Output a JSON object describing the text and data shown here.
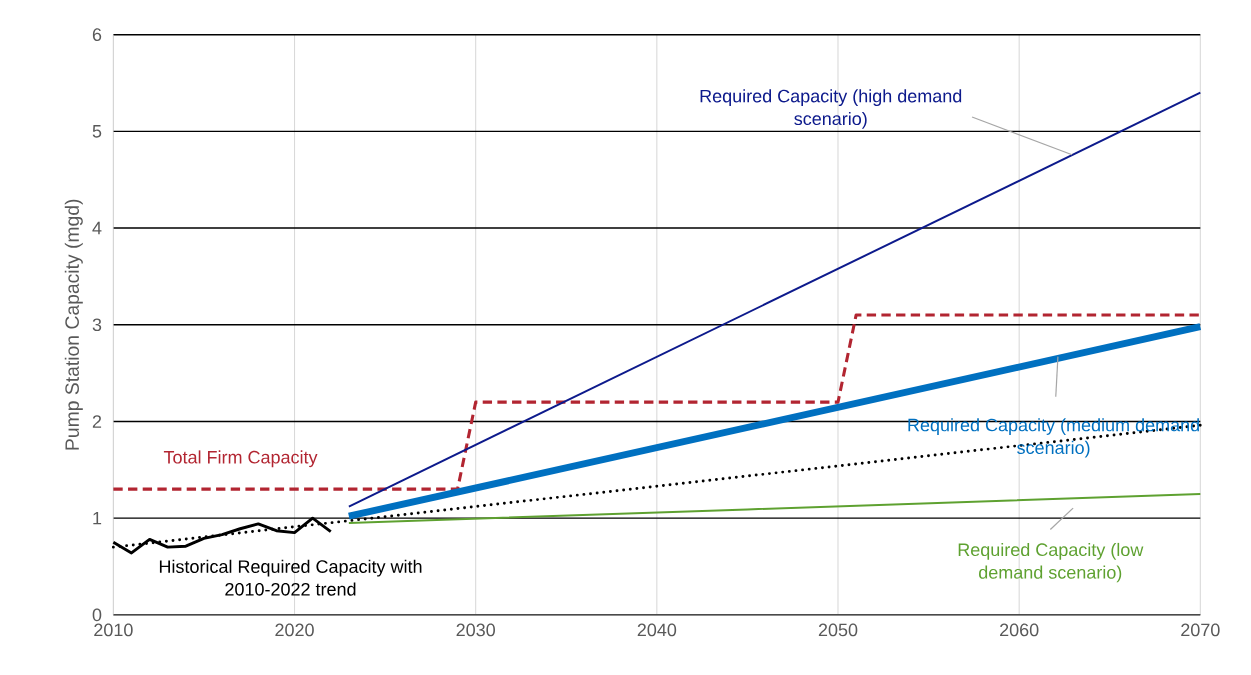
{
  "chart_data": {
    "type": "line",
    "ylabel": "Pump Station Capacity (mgd)",
    "xlim": [
      2010,
      2070
    ],
    "ylim": [
      0,
      6
    ],
    "xticks": [
      2010,
      2020,
      2030,
      2040,
      2050,
      2060,
      2070
    ],
    "yticks": [
      0,
      1,
      2,
      3,
      4,
      5,
      6
    ],
    "grid": true,
    "marker": "none",
    "series": [
      {
        "name": "Historical Required Capacity with 2010-2022 trend",
        "color": "#000000",
        "line_style": "solid",
        "x": [
          2010,
          2011,
          2012,
          2013,
          2014,
          2015,
          2016,
          2017,
          2018,
          2019,
          2020,
          2021,
          2022
        ],
        "values": [
          0.75,
          0.64,
          0.78,
          0.7,
          0.71,
          0.79,
          0.83,
          0.89,
          0.94,
          0.87,
          0.85,
          1.0,
          0.86
        ]
      },
      {
        "color": "#000000",
        "line_style": "dotted",
        "x": [
          2010,
          2070
        ],
        "values": [
          0.7,
          1.96
        ]
      },
      {
        "name": "Total Firm Capacity",
        "color": "#b22531",
        "line_style": "dashed",
        "x": [
          2010,
          2029,
          2030,
          2050,
          2051,
          2070
        ],
        "values": [
          1.3,
          1.3,
          2.2,
          2.2,
          3.1,
          3.1
        ]
      },
      {
        "name": "Required Capacity (high demand scenario)",
        "color": "#0d1a8c",
        "line_style": "solid",
        "x": [
          2023,
          2070
        ],
        "values": [
          1.12,
          5.4
        ]
      },
      {
        "name": "Required Capacity (medium demand scenario)",
        "color": "#0070c0",
        "line_style": "solid",
        "x": [
          2023,
          2070
        ],
        "values": [
          1.02,
          2.98
        ]
      },
      {
        "name": "Required Capacity (low demand scenario)",
        "color": "#5ea130",
        "line_style": "solid",
        "x": [
          2023,
          2045,
          2070
        ],
        "values": [
          0.95,
          1.09,
          1.25
        ]
      }
    ]
  }
}
